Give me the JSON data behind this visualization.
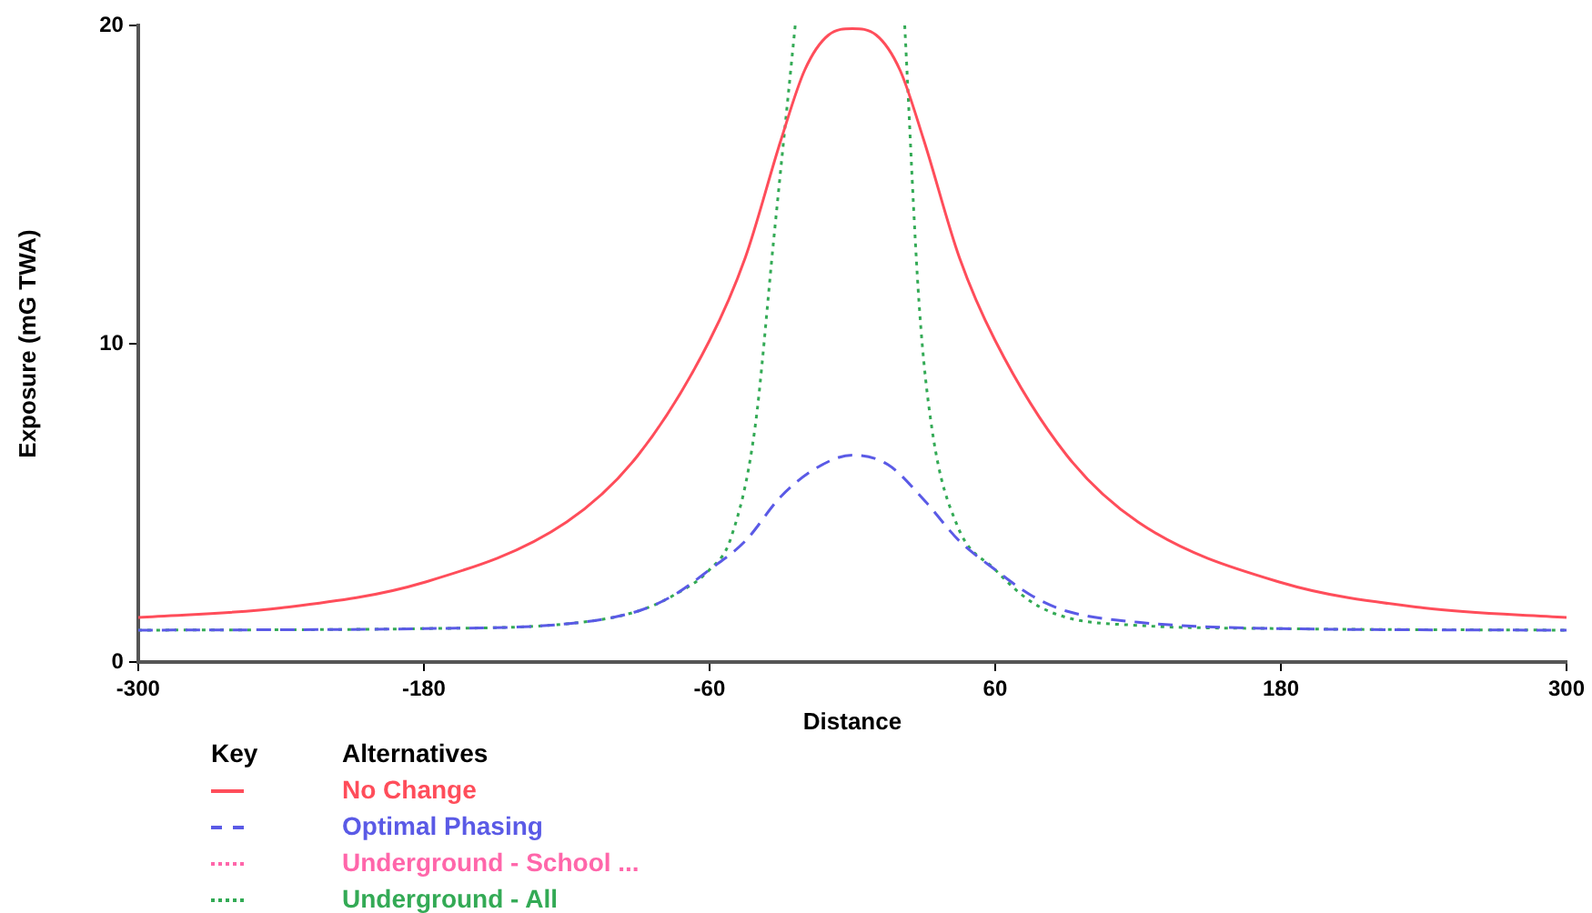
{
  "chart_data": {
    "type": "line",
    "xlabel": "Distance",
    "ylabel": "Exposure (mG TWA)",
    "legend_title": "Alternatives",
    "annotations": [
      "Key"
    ],
    "xlim": [
      -300,
      300
    ],
    "xticks": [
      -300,
      -180,
      -60,
      60,
      180,
      300
    ],
    "ylim": [
      0,
      20
    ],
    "yticks": [
      0,
      10,
      20
    ],
    "grid": false,
    "legend": "bottom left",
    "marker": "none",
    "series": [
      {
        "name": "No Change",
        "color": "#ff4d5a",
        "line_style": "solid",
        "x": [
          -300,
          -240,
          -180,
          -120,
          -90,
          -60,
          -45,
          -30,
          -20,
          -10,
          0,
          10,
          20,
          30,
          45,
          60,
          90,
          120,
          180,
          240,
          300
        ],
        "values": [
          1.4,
          1.7,
          2.5,
          4.4,
          6.5,
          10.1,
          12.7,
          16.4,
          18.6,
          19.7,
          19.9,
          19.7,
          18.6,
          16.4,
          12.7,
          10.1,
          6.5,
          4.4,
          2.5,
          1.7,
          1.4
        ]
      },
      {
        "name": "Optimal Phasing",
        "color": "#5a5ae6",
        "line_style": "dashed",
        "x": [
          -300,
          -180,
          -120,
          -90,
          -75,
          -60,
          -45,
          -30,
          -15,
          0,
          15,
          30,
          45,
          60,
          75,
          90,
          120,
          180,
          300
        ],
        "values": [
          1.0,
          1.05,
          1.2,
          1.6,
          2.1,
          2.9,
          3.8,
          5.2,
          6.1,
          6.5,
          6.2,
          5.1,
          3.8,
          2.9,
          2.1,
          1.6,
          1.25,
          1.05,
          1.0
        ]
      },
      {
        "name": "Underground - School ...",
        "color": "#ff66aa",
        "line_style": "dotted"
      },
      {
        "name": "Underground - All",
        "color": "#33aa55",
        "line_style": "dotted",
        "x": [
          -300,
          -180,
          -120,
          -90,
          -75,
          -60,
          -51,
          -41,
          -33,
          -24,
          0,
          22,
          28,
          33.5,
          44,
          60,
          75,
          90,
          120,
          180,
          300
        ],
        "values": [
          1.0,
          1.05,
          1.2,
          1.6,
          2.1,
          2.9,
          3.9,
          7.3,
          13.3,
          20,
          null,
          20,
          11.3,
          7.3,
          4.3,
          2.9,
          1.9,
          1.4,
          1.15,
          1.05,
          1.0
        ]
      }
    ]
  }
}
